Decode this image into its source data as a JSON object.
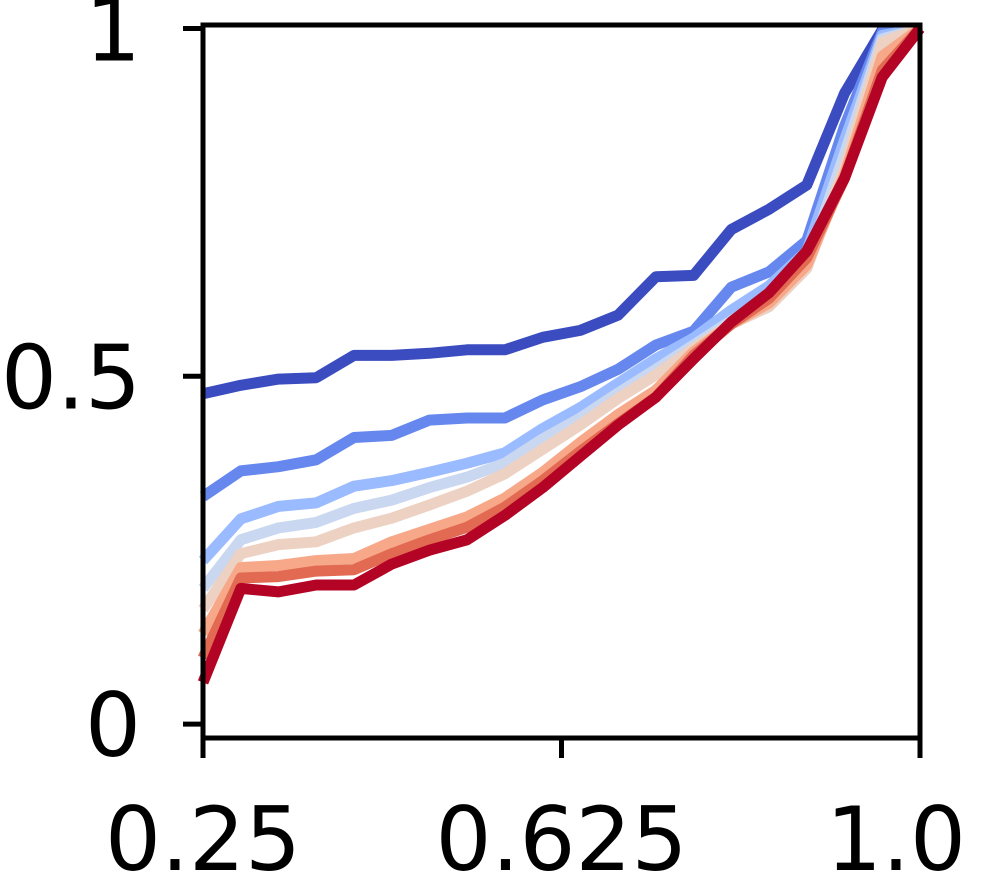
{
  "chart_data": {
    "type": "line",
    "title": "",
    "xlabel": "",
    "ylabel": "",
    "xlim": [
      0.25,
      1.0
    ],
    "ylim": [
      -0.02,
      1.005
    ],
    "grid": false,
    "legend": "none",
    "x_ticks": [
      {
        "value": 0.25,
        "label": "0.25"
      },
      {
        "value": 0.625,
        "label": "0.625"
      },
      {
        "value": 1.0,
        "label": "1.0"
      }
    ],
    "y_ticks": [
      {
        "value": 0,
        "label": "0"
      },
      {
        "value": 0.5,
        "label": "0.5"
      },
      {
        "value": 1,
        "label": "1"
      }
    ],
    "x": [
      0.25,
      0.2895,
      0.329,
      0.3684,
      0.4079,
      0.4474,
      0.4868,
      0.5263,
      0.5658,
      0.6053,
      0.6447,
      0.6842,
      0.7237,
      0.7632,
      0.8026,
      0.8421,
      0.8816,
      0.9211,
      0.9605,
      1.0
    ],
    "series": [
      {
        "color": "#3b4cc0",
        "values": [
          0.475,
          0.487,
          0.496,
          0.498,
          0.53,
          0.53,
          0.533,
          0.538,
          0.538,
          0.556,
          0.566,
          0.588,
          0.643,
          0.645,
          0.711,
          0.74,
          0.775,
          0.907,
          0.998,
          1.0
        ]
      },
      {
        "color": "#6688ee",
        "values": [
          0.327,
          0.364,
          0.37,
          0.38,
          0.412,
          0.415,
          0.437,
          0.44,
          0.44,
          0.466,
          0.485,
          0.51,
          0.545,
          0.565,
          0.628,
          0.65,
          0.695,
          0.86,
          0.995,
          1.0
        ]
      },
      {
        "color": "#9abbff",
        "values": [
          0.235,
          0.295,
          0.313,
          0.318,
          0.342,
          0.35,
          0.362,
          0.375,
          0.39,
          0.425,
          0.455,
          0.49,
          0.525,
          0.555,
          0.595,
          0.63,
          0.68,
          0.84,
          0.99,
          1.0
        ]
      },
      {
        "color": "#c9d7f0",
        "values": [
          0.195,
          0.265,
          0.282,
          0.29,
          0.31,
          0.322,
          0.34,
          0.355,
          0.375,
          0.41,
          0.44,
          0.476,
          0.51,
          0.545,
          0.58,
          0.61,
          0.66,
          0.82,
          0.985,
          1.0
        ]
      },
      {
        "color": "#edd1c2",
        "values": [
          0.165,
          0.245,
          0.258,
          0.262,
          0.282,
          0.296,
          0.315,
          0.335,
          0.36,
          0.395,
          0.43,
          0.468,
          0.502,
          0.54,
          0.575,
          0.6,
          0.655,
          0.8,
          0.98,
          1.0
        ]
      },
      {
        "color": "#f7a889",
        "values": [
          0.13,
          0.225,
          0.228,
          0.235,
          0.238,
          0.262,
          0.28,
          0.298,
          0.325,
          0.362,
          0.405,
          0.445,
          0.48,
          0.535,
          0.575,
          0.605,
          0.66,
          0.79,
          0.96,
          1.0
        ]
      },
      {
        "color": "#e26952",
        "values": [
          0.095,
          0.21,
          0.212,
          0.22,
          0.222,
          0.245,
          0.265,
          0.283,
          0.312,
          0.35,
          0.392,
          0.432,
          0.47,
          0.53,
          0.575,
          0.612,
          0.67,
          0.785,
          0.94,
          1.0
        ]
      },
      {
        "color": "#b40426",
        "values": [
          0.06,
          0.195,
          0.19,
          0.2,
          0.2,
          0.23,
          0.25,
          0.265,
          0.3,
          0.34,
          0.385,
          0.43,
          0.47,
          0.525,
          0.578,
          0.62,
          0.68,
          0.785,
          0.93,
          1.0
        ]
      }
    ]
  }
}
